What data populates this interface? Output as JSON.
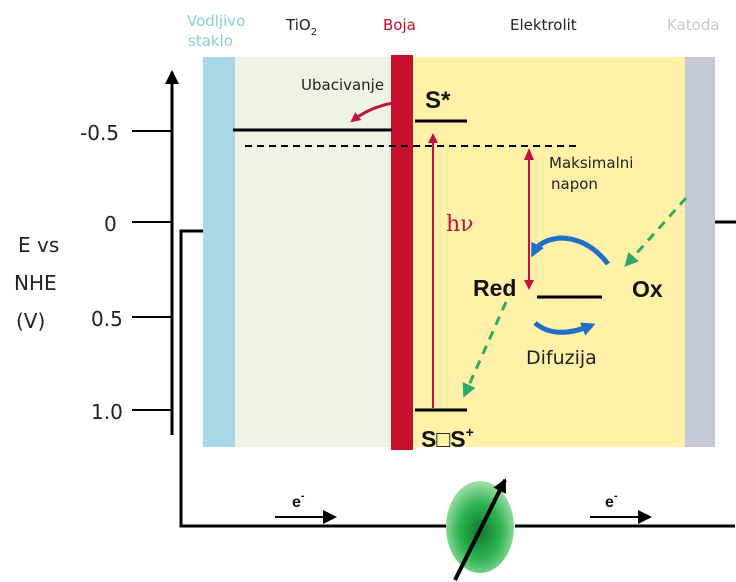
{
  "header": {
    "glass_line1": "Vodljivo",
    "glass_line2": "staklo",
    "tio2": "TiO",
    "tio2_sub": "2",
    "dye": "Boja",
    "electrolyte": "Elektrolit",
    "cathode": "Katoda"
  },
  "axis": {
    "label_line1": "E vs",
    "label_line2": "NHE",
    "label_line3": "(V)",
    "ticks": [
      "-0.5",
      "0",
      "0.5",
      "1.0"
    ]
  },
  "labels": {
    "injection": "Ubacivanje",
    "excited_state": "S*",
    "ground_state": "S□S",
    "ground_state_sup": "+",
    "photon": "hν",
    "max_voltage_line1": "Maksimalni",
    "max_voltage_line2": "napon",
    "red": "Red",
    "ox": "Ox",
    "diffusion": "Difuzija",
    "electron": "e",
    "electron_sup": "-"
  },
  "colors": {
    "glass": "#a8d8e8",
    "tio2_region": "#eef3e4",
    "dye": "#c8102e",
    "electrolyte": "#fff1a8",
    "cathode": "#c3cad6",
    "accent_red": "#c0143c",
    "blue_arrow": "#1f6fc9",
    "green_dash": "#2faa66"
  }
}
